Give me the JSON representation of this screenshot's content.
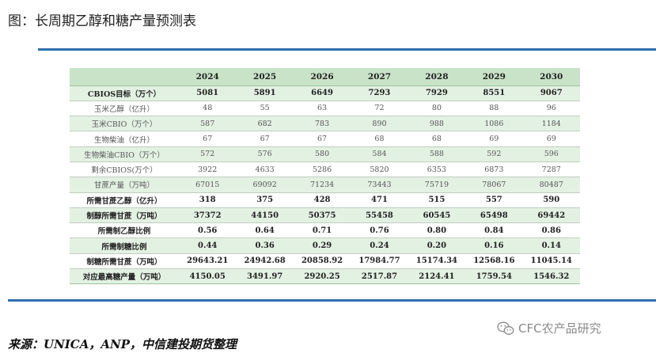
{
  "title": "图：长周期乙醇和糖产量预测表",
  "table": {
    "headers": [
      "2024",
      "2025",
      "2026",
      "2027",
      "2028",
      "2029",
      "2030"
    ],
    "rows": [
      {
        "label": "CBIOS目标（万个）",
        "values": [
          "5081",
          "5891",
          "6649",
          "7293",
          "7929",
          "8551",
          "9067"
        ]
      },
      {
        "label": "玉米乙醇（亿升）",
        "values": [
          "48",
          "55",
          "63",
          "72",
          "80",
          "88",
          "96"
        ]
      },
      {
        "label": "玉米CBIO（万个）",
        "values": [
          "587",
          "682",
          "783",
          "890",
          "988",
          "1086",
          "1184"
        ]
      },
      {
        "label": "生物柴油（亿升）",
        "values": [
          "67",
          "67",
          "67",
          "68",
          "68",
          "69",
          "69"
        ]
      },
      {
        "label": "生物柴油CBIO（万个）",
        "values": [
          "572",
          "576",
          "580",
          "584",
          "588",
          "592",
          "596"
        ]
      },
      {
        "label": "剩余CBIOS(万个）",
        "values": [
          "3922",
          "4633",
          "5286",
          "5820",
          "6353",
          "6873",
          "7287"
        ]
      },
      {
        "label": "甘蔗产量（万吨）",
        "values": [
          "67015",
          "69092",
          "71234",
          "73443",
          "75719",
          "78067",
          "80487"
        ]
      },
      {
        "label": "所需甘蔗乙醇（亿升）",
        "values": [
          "318",
          "375",
          "428",
          "471",
          "515",
          "557",
          "590"
        ]
      },
      {
        "label": "制醇所需甘蔗（万吨）",
        "values": [
          "37372",
          "44150",
          "50375",
          "55458",
          "60545",
          "65498",
          "69442"
        ]
      },
      {
        "label": "所需制乙醇比例",
        "values": [
          "0.56",
          "0.64",
          "0.71",
          "0.76",
          "0.80",
          "0.84",
          "0.86"
        ]
      },
      {
        "label": "所需制糖比例",
        "values": [
          "0.44",
          "0.36",
          "0.29",
          "0.24",
          "0.20",
          "0.16",
          "0.14"
        ]
      },
      {
        "label": "制糖所需甘蔗（万吨）",
        "values": [
          "29643.21",
          "24942.68",
          "20858.92",
          "17984.77",
          "15174.34",
          "12568.16",
          "11045.14"
        ]
      },
      {
        "label": "对应最高糖产量（万吨）",
        "values": [
          "4150.05",
          "3491.97",
          "2920.25",
          "2517.87",
          "2124.41",
          "1759.54",
          "1546.32"
        ]
      }
    ]
  },
  "source": "来源：UNICA，ANP，中信建投期货整理",
  "watermark": "CFC农产品研究",
  "colors": {
    "rule": "#2e6fad",
    "header_bg": "#c9e3c9",
    "row_shade": "#e3f1e3"
  }
}
